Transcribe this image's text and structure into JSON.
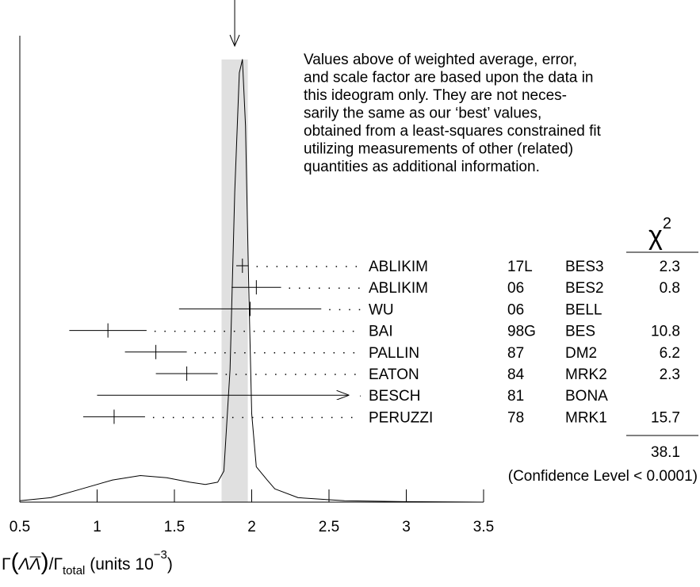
{
  "chart_data": {
    "type": "ideogram",
    "xlim": [
      0.5,
      3.5
    ],
    "xticks": [
      0.5,
      1,
      1.5,
      2,
      2.5,
      3,
      3.5
    ],
    "xlabel_parts": [
      "Γ",
      "(",
      "Λ",
      "Λ",
      ")",
      "/Γ",
      "total",
      " (units 10",
      "−3",
      ")"
    ],
    "average": 1.89,
    "average_error": 0.085,
    "band_color": "#e0e0e0",
    "note": [
      "Values above of weighted average, error,",
      "and scale factor are based upon the data in",
      "this ideogram only.  They are not neces-",
      "sarily the same as our ‘best’ values,",
      "obtained from a least-squares constrained fit",
      "utilizing measurements of other (related)",
      "quantities as additional information."
    ],
    "chi2_header": "χ",
    "chi2_header_sup": "2",
    "measurements": [
      {
        "name": "ABLIKIM",
        "year": "17L",
        "experiment": "BES3",
        "value": 1.94,
        "error": 0.04,
        "chi2": "2.3"
      },
      {
        "name": "ABLIKIM",
        "year": "06",
        "experiment": "BES2",
        "value": 2.03,
        "error": 0.16,
        "chi2": "0.8"
      },
      {
        "name": "WU",
        "year": "06",
        "experiment": "BELL",
        "value": 1.99,
        "error": 0.46,
        "chi2": null
      },
      {
        "name": "BAI",
        "year": "98G",
        "experiment": "BES",
        "value": 1.07,
        "error": 0.25,
        "chi2": "10.8"
      },
      {
        "name": "PALLIN",
        "year": "87",
        "experiment": "DM2",
        "value": 1.38,
        "error": 0.2,
        "chi2": "6.2"
      },
      {
        "name": "EATON",
        "year": "84",
        "experiment": "MRK2",
        "value": 1.58,
        "error": 0.2,
        "chi2": "2.3"
      },
      {
        "name": "BESCH",
        "year": "81",
        "experiment": "BONA",
        "from": 1.0,
        "to": 2.63,
        "chi2": null
      },
      {
        "name": "PERUZZI",
        "year": "78",
        "experiment": "MRK1",
        "value": 1.11,
        "error": 0.2,
        "chi2": "15.7"
      }
    ],
    "chi2_total": "38.1",
    "confidence": "(Confidence Level < 0.0001)",
    "ideogram": {
      "x": [
        0.5,
        0.7,
        0.9,
        1.1,
        1.28,
        1.45,
        1.6,
        1.7,
        1.78,
        1.82,
        1.86,
        1.89,
        1.92,
        1.94,
        1.96,
        1.98,
        2.0,
        2.03,
        2.1,
        2.15,
        2.3,
        2.6,
        3.0,
        3.5
      ],
      "y": [
        0.003,
        0.01,
        0.03,
        0.05,
        0.06,
        0.055,
        0.045,
        0.04,
        0.045,
        0.07,
        0.3,
        0.7,
        0.97,
        1.0,
        0.85,
        0.5,
        0.2,
        0.08,
        0.05,
        0.03,
        0.01,
        0.003,
        0.001,
        0
      ]
    }
  }
}
